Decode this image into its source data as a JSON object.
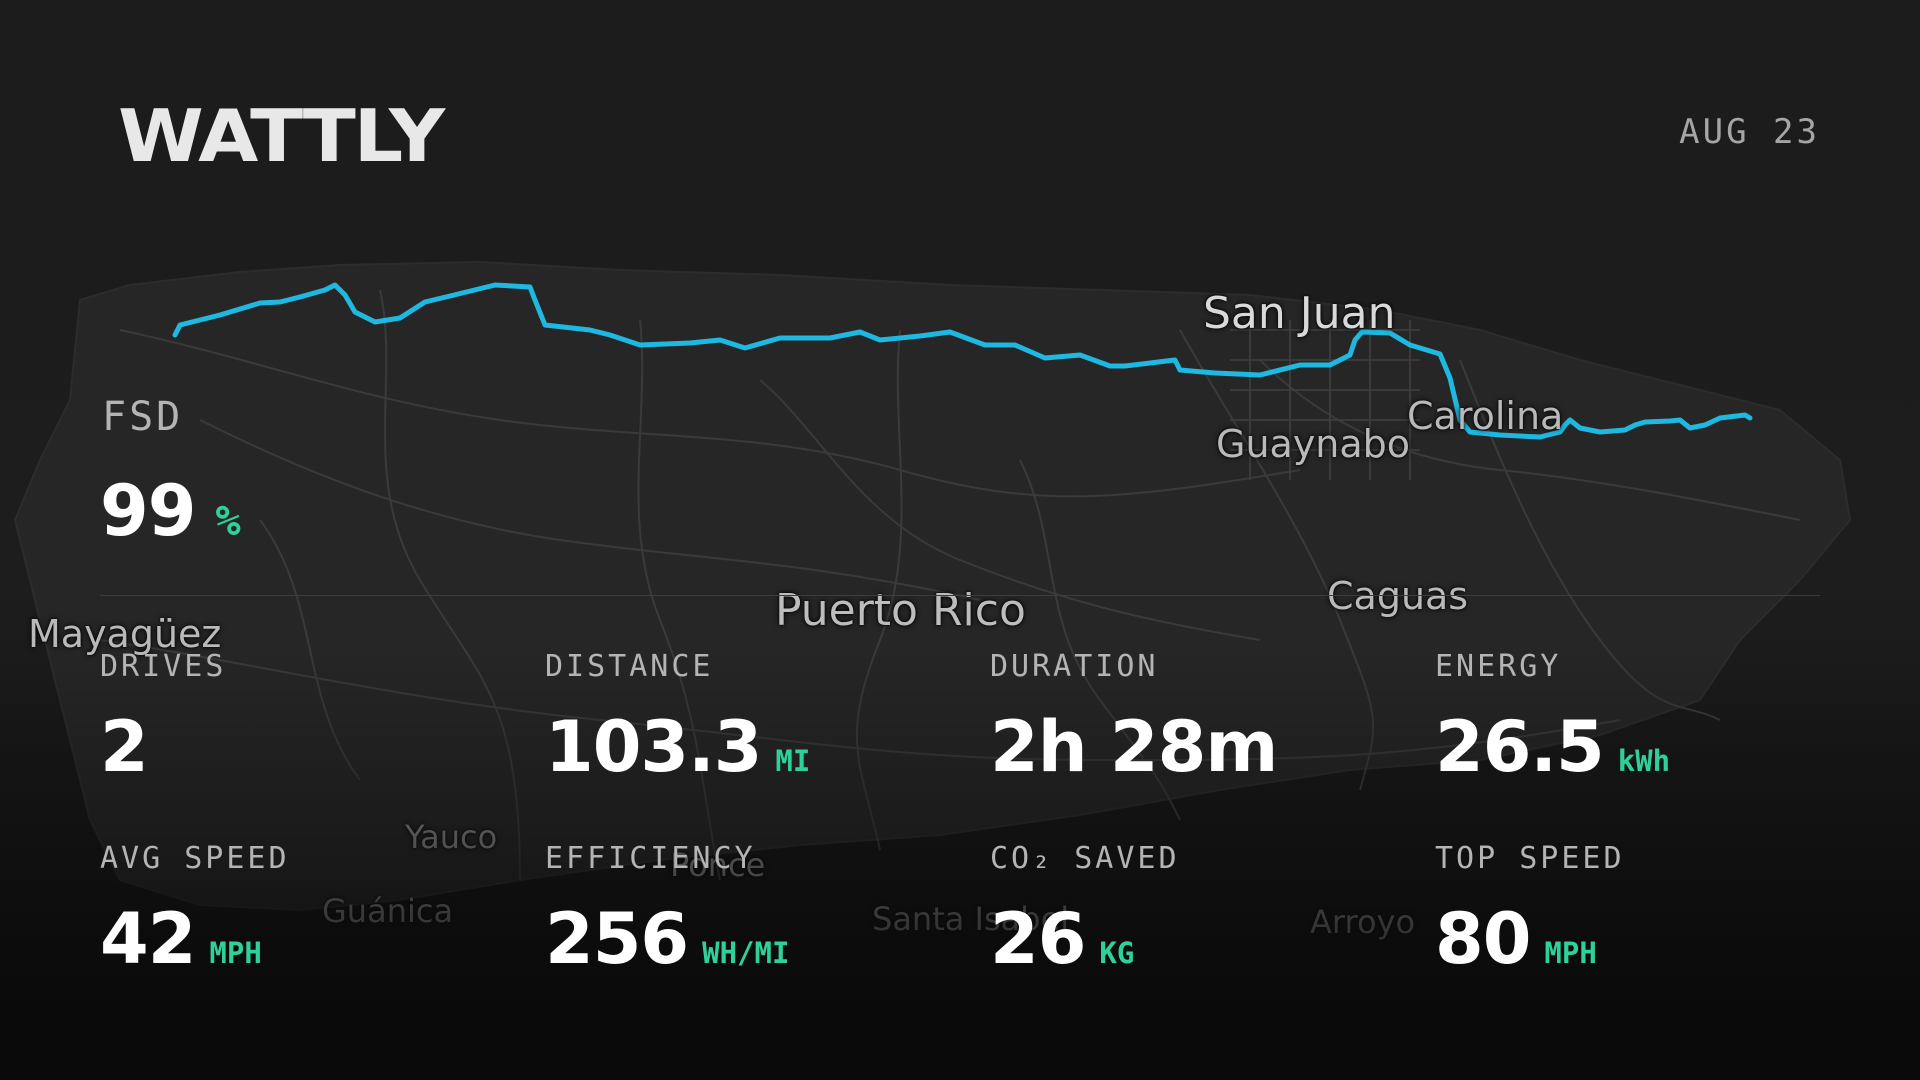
{
  "header": {
    "logo": "WATTLY",
    "date": "AUG 23"
  },
  "colors": {
    "route": "#1fb8e0",
    "accent": "#2fd19a",
    "background": "#1c1c1c"
  },
  "map": {
    "labels": {
      "san_juan": "San Juan",
      "carolina": "Carolina",
      "guaynabo": "Guaynabo",
      "caguas": "Caguas",
      "puerto_rico": "Puerto Rico",
      "mayaguez": "Mayagüez",
      "yauco": "Yauco",
      "guanica": "Guánica",
      "ponce": "Ponce",
      "santa_isabel": "Santa Isabel",
      "arroyo": "Arroyo"
    }
  },
  "fsd": {
    "label": "FSD",
    "value": "99",
    "unit": "%"
  },
  "stats": {
    "drives": {
      "label": "DRIVES",
      "value": "2",
      "unit": ""
    },
    "distance": {
      "label": "DISTANCE",
      "value": "103.3",
      "unit": "MI"
    },
    "duration": {
      "label": "DURATION",
      "value": "2h 28m",
      "unit": ""
    },
    "energy": {
      "label": "ENERGY",
      "value": "26.5",
      "unit": "kWh"
    },
    "avg_speed": {
      "label": "AVG SPEED",
      "value": "42",
      "unit": "MPH"
    },
    "efficiency": {
      "label": "EFFICIENCY",
      "value": "256",
      "unit": "WH/MI"
    },
    "co2_saved": {
      "label": "CO₂ SAVED",
      "value": "26",
      "unit": "KG"
    },
    "top_speed": {
      "label": "TOP SPEED",
      "value": "80",
      "unit": "MPH"
    }
  }
}
